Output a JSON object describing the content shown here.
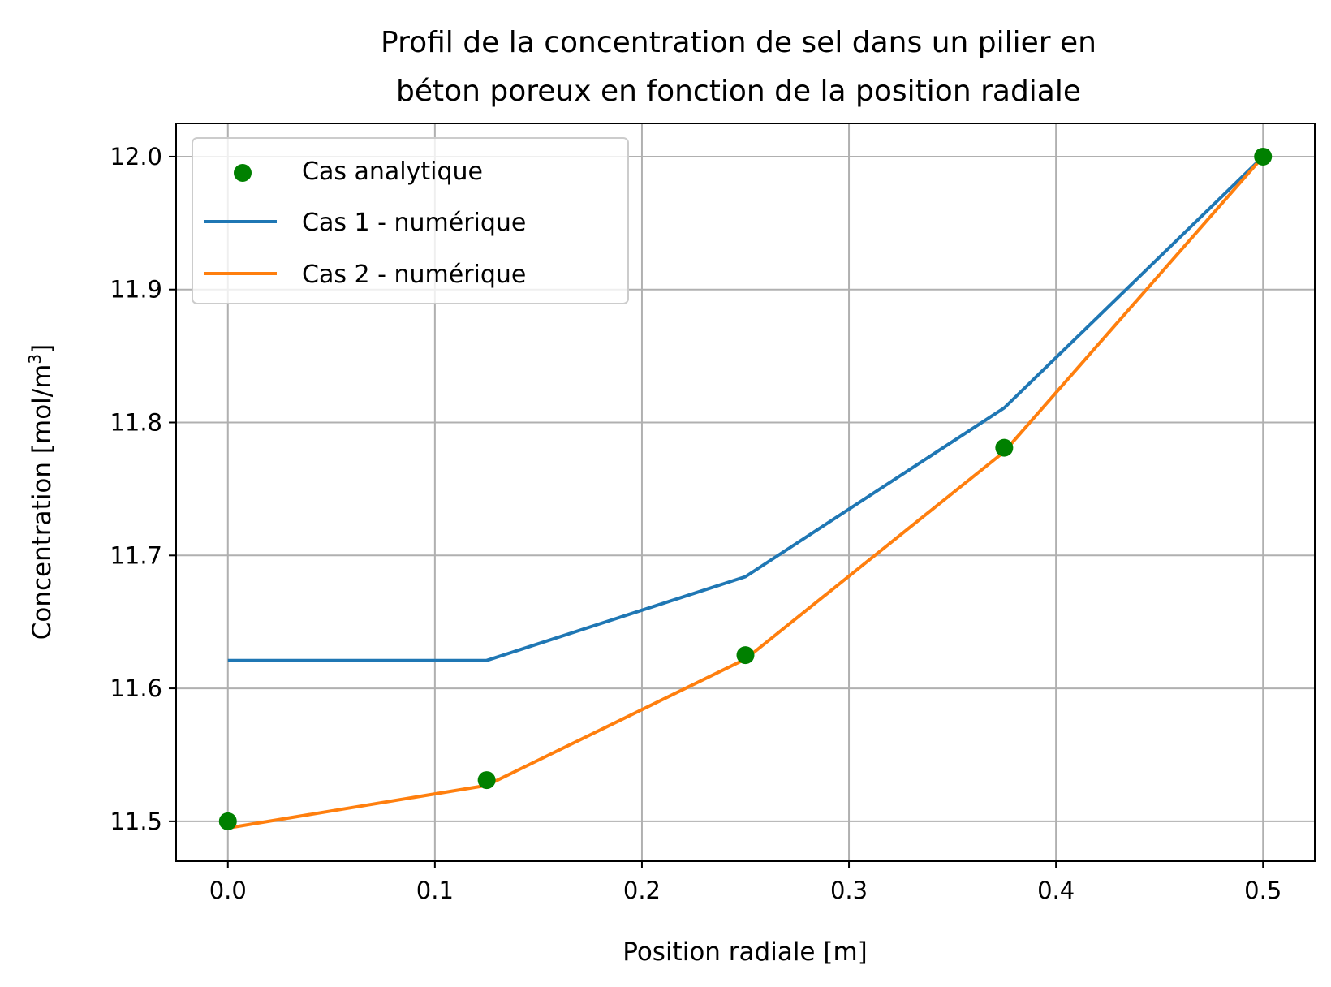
{
  "chart_data": {
    "type": "line",
    "title": [
      "Profil de la concentration de sel dans un pilier en",
      "béton poreux en fonction de la position radiale"
    ],
    "xlabel": "Position radiale [m]",
    "ylabel_main": "Concentration [mol/m",
    "ylabel_sup": "3",
    "ylabel_end": "]",
    "xlim": [
      -0.025,
      0.525
    ],
    "ylim": [
      11.47,
      12.025
    ],
    "xticks": [
      0.0,
      0.1,
      0.2,
      0.3,
      0.4,
      0.5
    ],
    "xtick_labels": [
      "0.0",
      "0.1",
      "0.2",
      "0.3",
      "0.4",
      "0.5"
    ],
    "yticks": [
      11.5,
      11.6,
      11.7,
      11.8,
      11.9,
      12.0
    ],
    "ytick_labels": [
      "11.5",
      "11.6",
      "11.7",
      "11.8",
      "11.9",
      "12.0"
    ],
    "grid": true,
    "legend_position": "upper-left",
    "x": [
      0.0,
      0.125,
      0.25,
      0.375,
      0.5
    ],
    "series": [
      {
        "name": "Cas analytique",
        "kind": "scatter",
        "color": "#008000",
        "values": [
          11.5,
          11.531,
          11.625,
          11.781,
          12.0
        ]
      },
      {
        "name": "Cas 1 - numérique",
        "kind": "line",
        "color": "#1f77b4",
        "values": [
          11.621,
          11.621,
          11.684,
          11.811,
          12.0
        ]
      },
      {
        "name": "Cas 2 - numérique",
        "kind": "line",
        "color": "#ff7f0e",
        "values": [
          11.495,
          11.527,
          11.622,
          11.778,
          12.0
        ]
      }
    ]
  }
}
